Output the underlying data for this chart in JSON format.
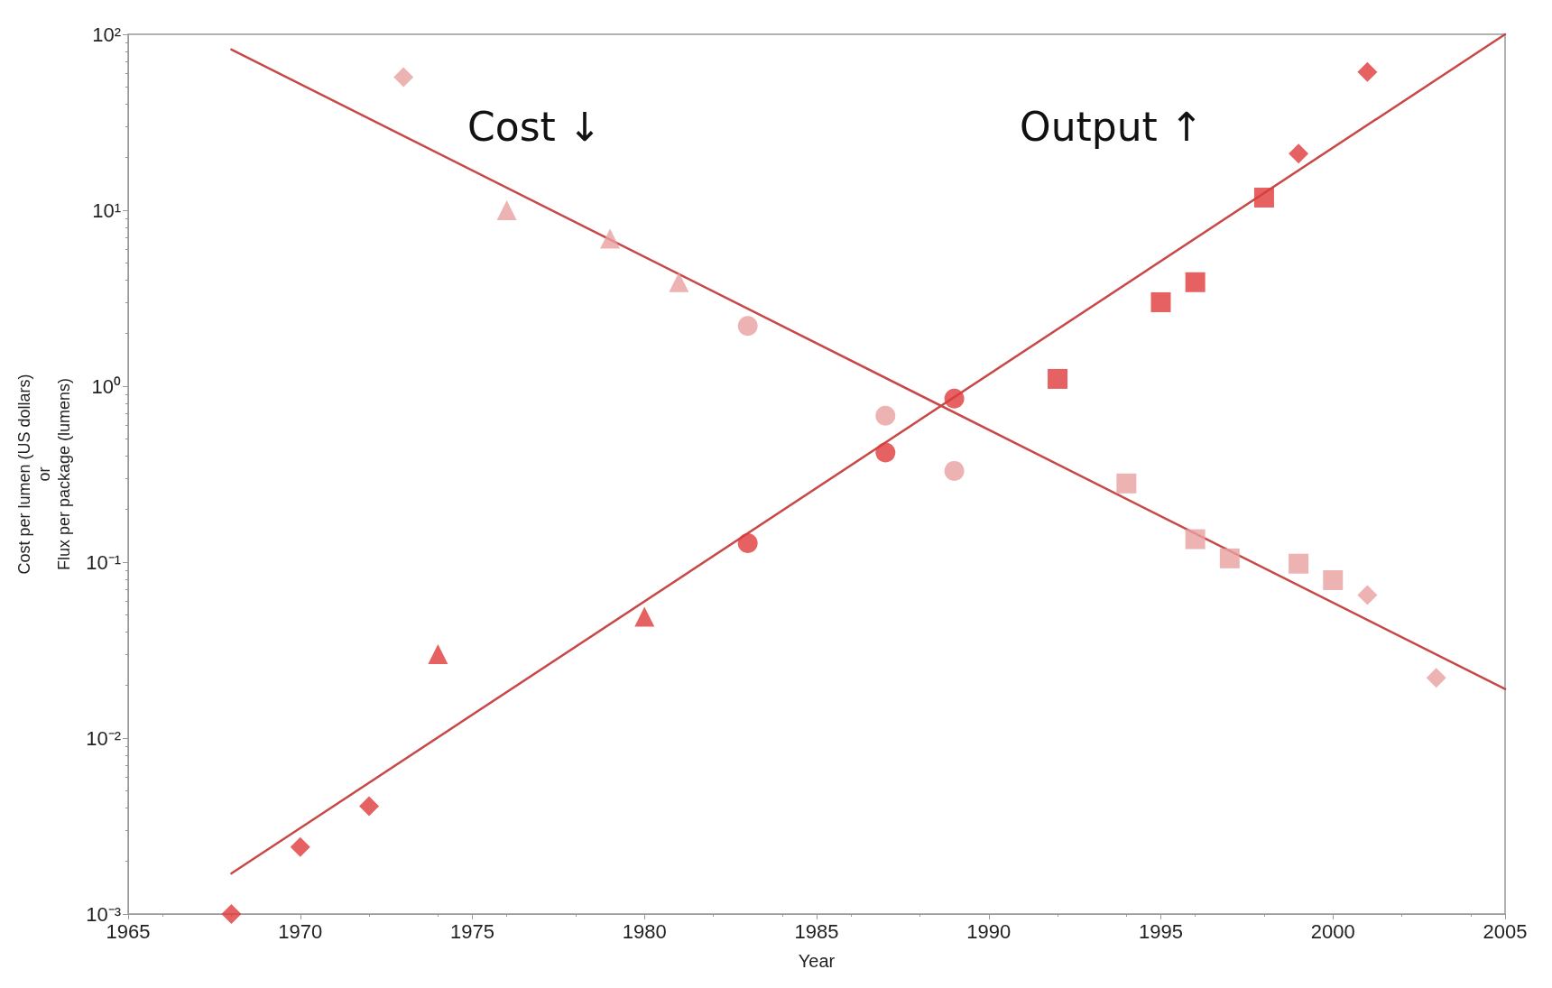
{
  "chart_data": {
    "type": "scatter",
    "xlabel": "Year",
    "ylabel": "Cost per lumen (US dollars)\nor\nFlux per package (lumens)",
    "log": "y",
    "xlim": [
      1965,
      2005
    ],
    "xticks": [
      1965,
      1970,
      1975,
      1980,
      1985,
      1990,
      1995,
      2000,
      2005
    ],
    "ylim": [
      0.001,
      100
    ],
    "yticks": [
      {
        "value": 0.001,
        "label": "10⁻³"
      },
      {
        "value": 0.01,
        "label": "10⁻²"
      },
      {
        "value": 0.1,
        "label": "10⁻¹"
      },
      {
        "value": 1,
        "label": "10⁰"
      },
      {
        "value": 10,
        "label": "10¹"
      },
      {
        "value": 100,
        "label": "10²"
      }
    ],
    "grid": false,
    "annotations": [
      "Cost ↓",
      "Output ↑"
    ],
    "series": [
      {
        "marker": "diamond",
        "color": "#e03a3a",
        "x": [
          1968,
          1970,
          1972,
          1999,
          2001
        ],
        "values": [
          0.001,
          0.0024,
          0.0041,
          21,
          61
        ]
      },
      {
        "marker": "triangle",
        "color": "#e03a3a",
        "x": [
          1974,
          1980
        ],
        "values": [
          0.03,
          0.049
        ]
      },
      {
        "marker": "circle",
        "color": "#e03a3a",
        "x": [
          1983,
          1987,
          1989
        ],
        "values": [
          0.128,
          0.42,
          0.85
        ]
      },
      {
        "marker": "square",
        "color": "#e03a3a",
        "x": [
          1992,
          1995,
          1996,
          1998
        ],
        "values": [
          1.1,
          3.0,
          3.9,
          11.8
        ]
      },
      {
        "marker": "diamond",
        "color": "#e8a0a0",
        "x": [
          1973,
          2001,
          2003
        ],
        "values": [
          57,
          0.065,
          0.022
        ]
      },
      {
        "marker": "triangle",
        "color": "#e8a0a0",
        "x": [
          1976,
          1979,
          1981
        ],
        "values": [
          10,
          6.9,
          3.9
        ]
      },
      {
        "marker": "circle",
        "color": "#e8a0a0",
        "x": [
          1983,
          1987,
          1989
        ],
        "values": [
          2.2,
          0.68,
          0.33
        ]
      },
      {
        "marker": "square",
        "color": "#e8a0a0",
        "x": [
          1994,
          1996,
          1997,
          1999,
          2000
        ],
        "values": [
          0.28,
          0.135,
          0.105,
          0.098,
          0.079
        ]
      },
      {
        "type": "line",
        "marker": "none",
        "line_style": "solid",
        "color": "#c84848",
        "x": [
          1968,
          2005
        ],
        "values": [
          0.0017,
          100
        ]
      },
      {
        "type": "line",
        "marker": "none",
        "line_style": "solid",
        "color": "#c84848",
        "x": [
          1968,
          2005
        ],
        "values": [
          82,
          0.019
        ]
      }
    ]
  }
}
